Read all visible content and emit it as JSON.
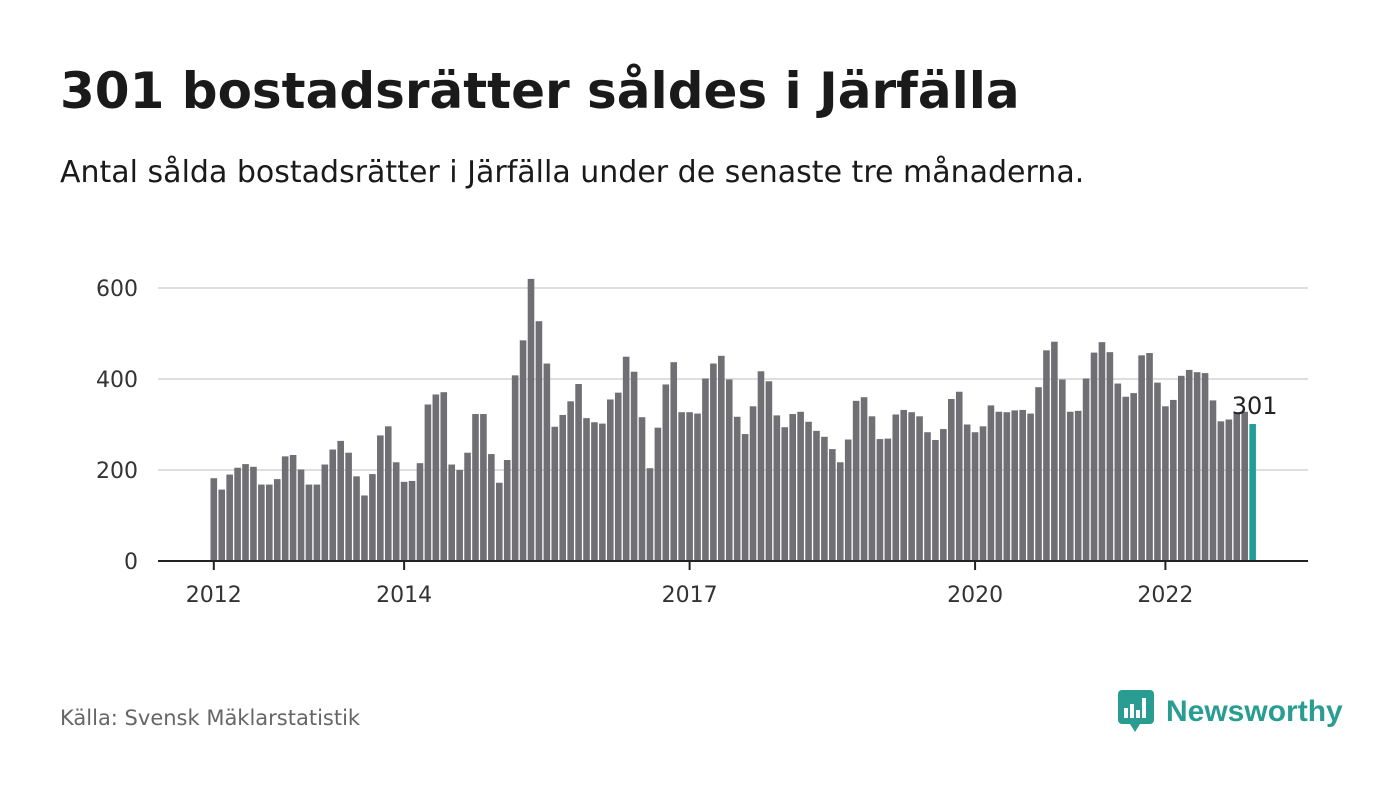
{
  "title": "301 bostadsrätter såldes i Järfälla",
  "subtitle": "Antal sålda bostadsrätter i Järfälla under de senaste tre månaderna.",
  "source": "Källa: Svensk Mäklarstatistik",
  "brand": {
    "name": "Newsworthy",
    "icon": "newsworthy-bar-chart-icon"
  },
  "colors": {
    "bar": "#707074",
    "highlight": "#1e9e96",
    "brand": "#2a9d93"
  },
  "chart_data": {
    "type": "bar",
    "title": "",
    "xlabel": "",
    "ylabel": "",
    "ylim": [
      0,
      600
    ],
    "yticks": [
      0,
      200,
      400,
      600
    ],
    "xticks": [
      "2012",
      "2014",
      "2017",
      "2020",
      "2022"
    ],
    "grid": true,
    "highlight_last": true,
    "annotation": "301",
    "start": "2012-01",
    "values": [
      182,
      157,
      190,
      205,
      213,
      207,
      168,
      168,
      180,
      230,
      233,
      201,
      168,
      168,
      212,
      245,
      264,
      238,
      186,
      144,
      191,
      276,
      296,
      217,
      174,
      176,
      215,
      344,
      366,
      371,
      212,
      200,
      238,
      323,
      323,
      235,
      172,
      222,
      408,
      485,
      620,
      527,
      434,
      295,
      321,
      351,
      389,
      314,
      305,
      302,
      355,
      370,
      449,
      416,
      316,
      204,
      293,
      388,
      437,
      327,
      327,
      324,
      401,
      434,
      451,
      399,
      317,
      279,
      340,
      417,
      395,
      320,
      294,
      323,
      328,
      306,
      286,
      273,
      246,
      217,
      267,
      352,
      360,
      318,
      268,
      269,
      322,
      332,
      327,
      318,
      283,
      266,
      290,
      356,
      372,
      300,
      283,
      296,
      342,
      328,
      327,
      331,
      332,
      324,
      382,
      463,
      482,
      399,
      328,
      330,
      401,
      458,
      481,
      459,
      390,
      361,
      369,
      452,
      457,
      392,
      340,
      354,
      407,
      420,
      415,
      413,
      353,
      307,
      311,
      325,
      328,
      301
    ]
  }
}
